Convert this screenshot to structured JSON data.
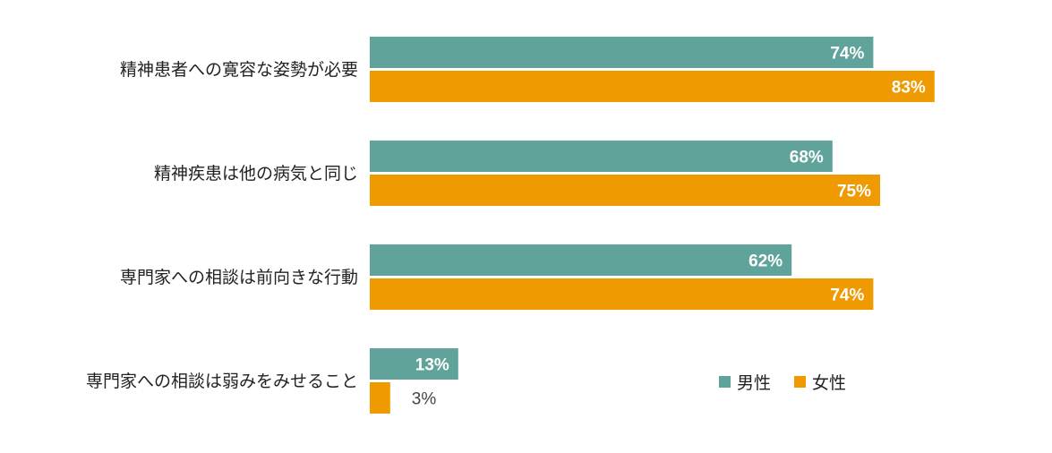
{
  "chart_data": {
    "type": "bar",
    "orientation": "horizontal",
    "categories": [
      "精神患者への寛容な姿勢が必要",
      "精神疾患は他の病気と同じ",
      "専門家への相談は前向きな行動",
      "専門家への相談は弱みをみせること"
    ],
    "series": [
      {
        "name": "男性",
        "color": "#5fa39a",
        "values": [
          74,
          68,
          62,
          13
        ],
        "labels": [
          "74%",
          "68%",
          "62%",
          "13%"
        ]
      },
      {
        "name": "女性",
        "color": "#ee9a00",
        "values": [
          83,
          75,
          74,
          3
        ],
        "labels": [
          "83%",
          "75%",
          "74%",
          "3%"
        ]
      }
    ],
    "unit": "%",
    "xlim": [
      0,
      100
    ],
    "grid": false,
    "legend_position": "bottom-right"
  }
}
